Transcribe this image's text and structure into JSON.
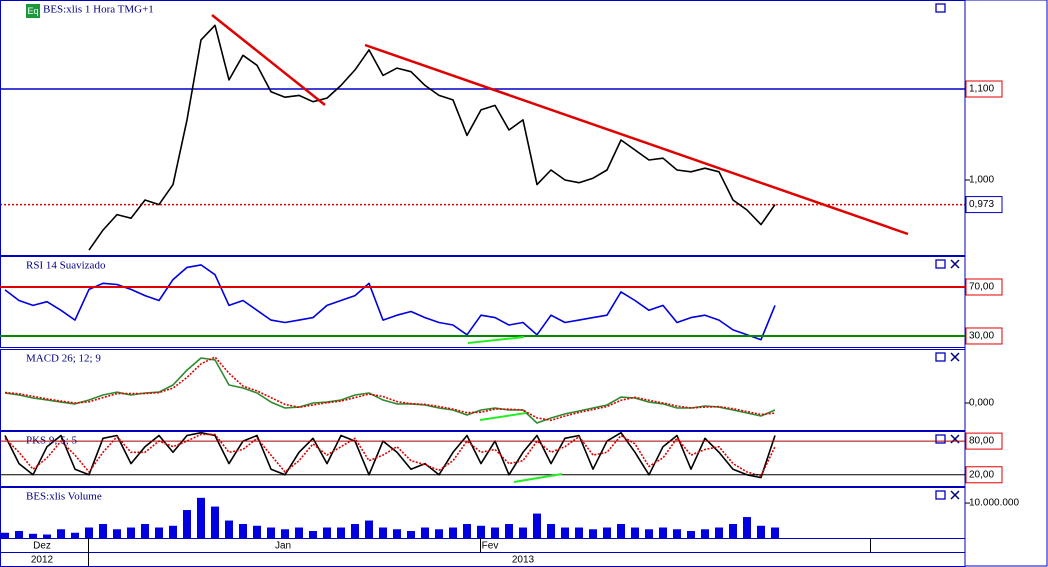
{
  "badge": "Eq",
  "time_axis": {
    "months": [
      "Dez",
      "Jan",
      "Fev"
    ],
    "years": [
      "2012",
      "2013"
    ]
  },
  "chart_data": [
    {
      "type": "line",
      "title": "BES:xlis 1 Hora TMG+1",
      "ylim": [
        0.9176,
        1.1978
      ],
      "yticks": [
        {
          "value": 1.1,
          "label": "1,100"
        },
        {
          "value": 1.0,
          "label": "1,000"
        }
      ],
      "horizontal_line": 1.1,
      "horizontal_line_color": "#0000c8",
      "price_marker": {
        "value": 0.973,
        "label": "0,973"
      },
      "price_marker_color": "#e00000",
      "tick_box_color": "#e00000",
      "series": [
        {
          "color": "#000000",
          "values": [
            null,
            null,
            null,
            null,
            null,
            null,
            0.923,
            0.945,
            0.962,
            0.958,
            0.978,
            0.973,
            0.995,
            1.066,
            1.154,
            1.17,
            1.11,
            1.137,
            1.126,
            1.097,
            1.091,
            1.093,
            1.086,
            1.09,
            1.104,
            1.121,
            1.143,
            1.115,
            1.123,
            1.119,
            1.104,
            1.093,
            1.088,
            1.049,
            1.077,
            1.082,
            1.055,
            1.066,
            0.995,
            1.011,
            1.0,
            0.997,
            1.002,
            1.011,
            1.044,
            1.033,
            1.022,
            1.024,
            1.011,
            1.009,
            1.013,
            1.009,
            0.978,
            0.967,
            0.951,
            0.973
          ]
        }
      ]
    },
    {
      "type": "line",
      "title": "RSI 14 Suavizado",
      "ylim": [
        21,
        95.3
      ],
      "yticks": [
        {
          "value": 70,
          "label": "70,00"
        },
        {
          "value": 30,
          "label": "30,00"
        }
      ],
      "level_colors": [
        "#e00000",
        "#008800"
      ],
      "tick_box_color": "#e00000",
      "series": [
        {
          "color": "#0000e0",
          "values": [
            67.6,
            59,
            55,
            58,
            51,
            43,
            68,
            73,
            72,
            68,
            63,
            59,
            76,
            86,
            88,
            80,
            55,
            59,
            51,
            43,
            41,
            43,
            45,
            55,
            59,
            63,
            73,
            43,
            47,
            50,
            45,
            41,
            39,
            31,
            47,
            45,
            39,
            41,
            31,
            47,
            41,
            43,
            45,
            47,
            66,
            59,
            51,
            55,
            41,
            45,
            47,
            43,
            35,
            31,
            27,
            55
          ]
        }
      ]
    },
    {
      "type": "line",
      "title": "MACD 26; 12; 9",
      "ylim": [
        -0.02,
        0.04
      ],
      "yticks": [
        {
          "value": 0,
          "label": "0,000"
        }
      ],
      "series": [
        {
          "color": "#2e8b2e",
          "values": [
            0.0074,
            0.0059,
            0.0037,
            0.0022,
            0.0007,
            -0.0007,
            0.0022,
            0.0059,
            0.0081,
            0.0059,
            0.0074,
            0.0081,
            0.0133,
            0.0244,
            0.0333,
            0.0319,
            0.0133,
            0.0111,
            0.0074,
            0.0007,
            -0.0037,
            -0.003,
            0,
            0.0007,
            0.0022,
            0.0059,
            0.0074,
            0.0022,
            -0.0007,
            -0.0007,
            -0.0015,
            -0.0037,
            -0.0052,
            -0.0089,
            -0.0052,
            -0.0037,
            -0.0052,
            -0.0052,
            -0.0148,
            -0.0111,
            -0.0081,
            -0.0059,
            -0.0037,
            -0.0015,
            0.0044,
            0.0037,
            0.0007,
            -0.0007,
            -0.0037,
            -0.0037,
            -0.0022,
            -0.003,
            -0.0052,
            -0.0074,
            -0.0096,
            -0.0052
          ]
        },
        {
          "color": "#e00000",
          "dashed": true,
          "values": [
            0.0078,
            0.0068,
            0.005,
            0.003,
            0.0014,
            0.0,
            0.0009,
            0.004,
            0.007,
            0.007,
            0.007,
            0.0077,
            0.011,
            0.019,
            0.029,
            0.034,
            0.022,
            0.0125,
            0.009,
            0.004,
            -0.001,
            -0.0032,
            -0.0015,
            0.0002,
            0.0014,
            0.004,
            0.0066,
            0.0048,
            0.001,
            -0.0005,
            -0.001,
            -0.0026,
            -0.0045,
            -0.0072,
            -0.0068,
            -0.0045,
            -0.0046,
            -0.0052,
            -0.011,
            -0.0128,
            -0.0096,
            -0.007,
            -0.0048,
            -0.0026,
            0.002,
            0.0042,
            0.002,
            0.0,
            -0.0022,
            -0.0037,
            -0.003,
            -0.0027,
            -0.0042,
            -0.0064,
            -0.0085,
            -0.0075
          ]
        }
      ]
    },
    {
      "type": "line",
      "title": "PKS 9; 5; 5",
      "ylim": [
        0,
        98
      ],
      "yticks": [
        {
          "value": 80,
          "label": "80,00"
        },
        {
          "value": 20,
          "label": "20,00"
        }
      ],
      "level_colors": [
        "#a00000",
        "#000000"
      ],
      "tick_box_color": "#e00000",
      "series": [
        {
          "color": "#000000",
          "values": [
            90,
            40,
            20,
            70,
            90,
            30,
            20,
            85,
            90,
            40,
            70,
            90,
            60,
            90,
            95,
            90,
            40,
            80,
            90,
            30,
            20,
            60,
            85,
            40,
            90,
            80,
            20,
            80,
            60,
            30,
            40,
            20,
            60,
            90,
            40,
            80,
            20,
            60,
            90,
            40,
            85,
            90,
            30,
            80,
            95,
            60,
            20,
            70,
            90,
            30,
            85,
            60,
            30,
            20,
            15,
            90
          ]
        },
        {
          "color": "#e00000",
          "dashed": true,
          "values": [
            85,
            60,
            30,
            50,
            80,
            55,
            25,
            60,
            88,
            60,
            60,
            80,
            70,
            80,
            92,
            92,
            60,
            65,
            85,
            55,
            25,
            45,
            75,
            55,
            70,
            85,
            45,
            55,
            70,
            45,
            38,
            28,
            45,
            80,
            60,
            65,
            40,
            45,
            80,
            60,
            70,
            88,
            55,
            60,
            90,
            75,
            35,
            50,
            85,
            55,
            65,
            70,
            40,
            25,
            18,
            70
          ]
        }
      ]
    },
    {
      "type": "bar",
      "title": "BES:xlis Volume",
      "ylim": [
        0,
        14600000
      ],
      "yticks": [
        {
          "value": 10000000,
          "label": "10.000.000"
        }
      ],
      "color": "#0000e0",
      "values": [
        1500000,
        2000000,
        1200000,
        1000000,
        2500000,
        1500000,
        3000000,
        4000000,
        2500000,
        3000000,
        4000000,
        3000000,
        3500000,
        8000000,
        11500000,
        9000000,
        5000000,
        4000000,
        3500000,
        3000000,
        2500000,
        3000000,
        2000000,
        3000000,
        3000000,
        4000000,
        5000000,
        3000000,
        2500000,
        2000000,
        3000000,
        2500000,
        3000000,
        4000000,
        3500000,
        3000000,
        4000000,
        3000000,
        7000000,
        4000000,
        3000000,
        3000000,
        2500000,
        3000000,
        4000000,
        3000000,
        2500000,
        3000000,
        2500000,
        2000000,
        2500000,
        3000000,
        4000000,
        6000000,
        3500000,
        3000000
      ]
    }
  ]
}
